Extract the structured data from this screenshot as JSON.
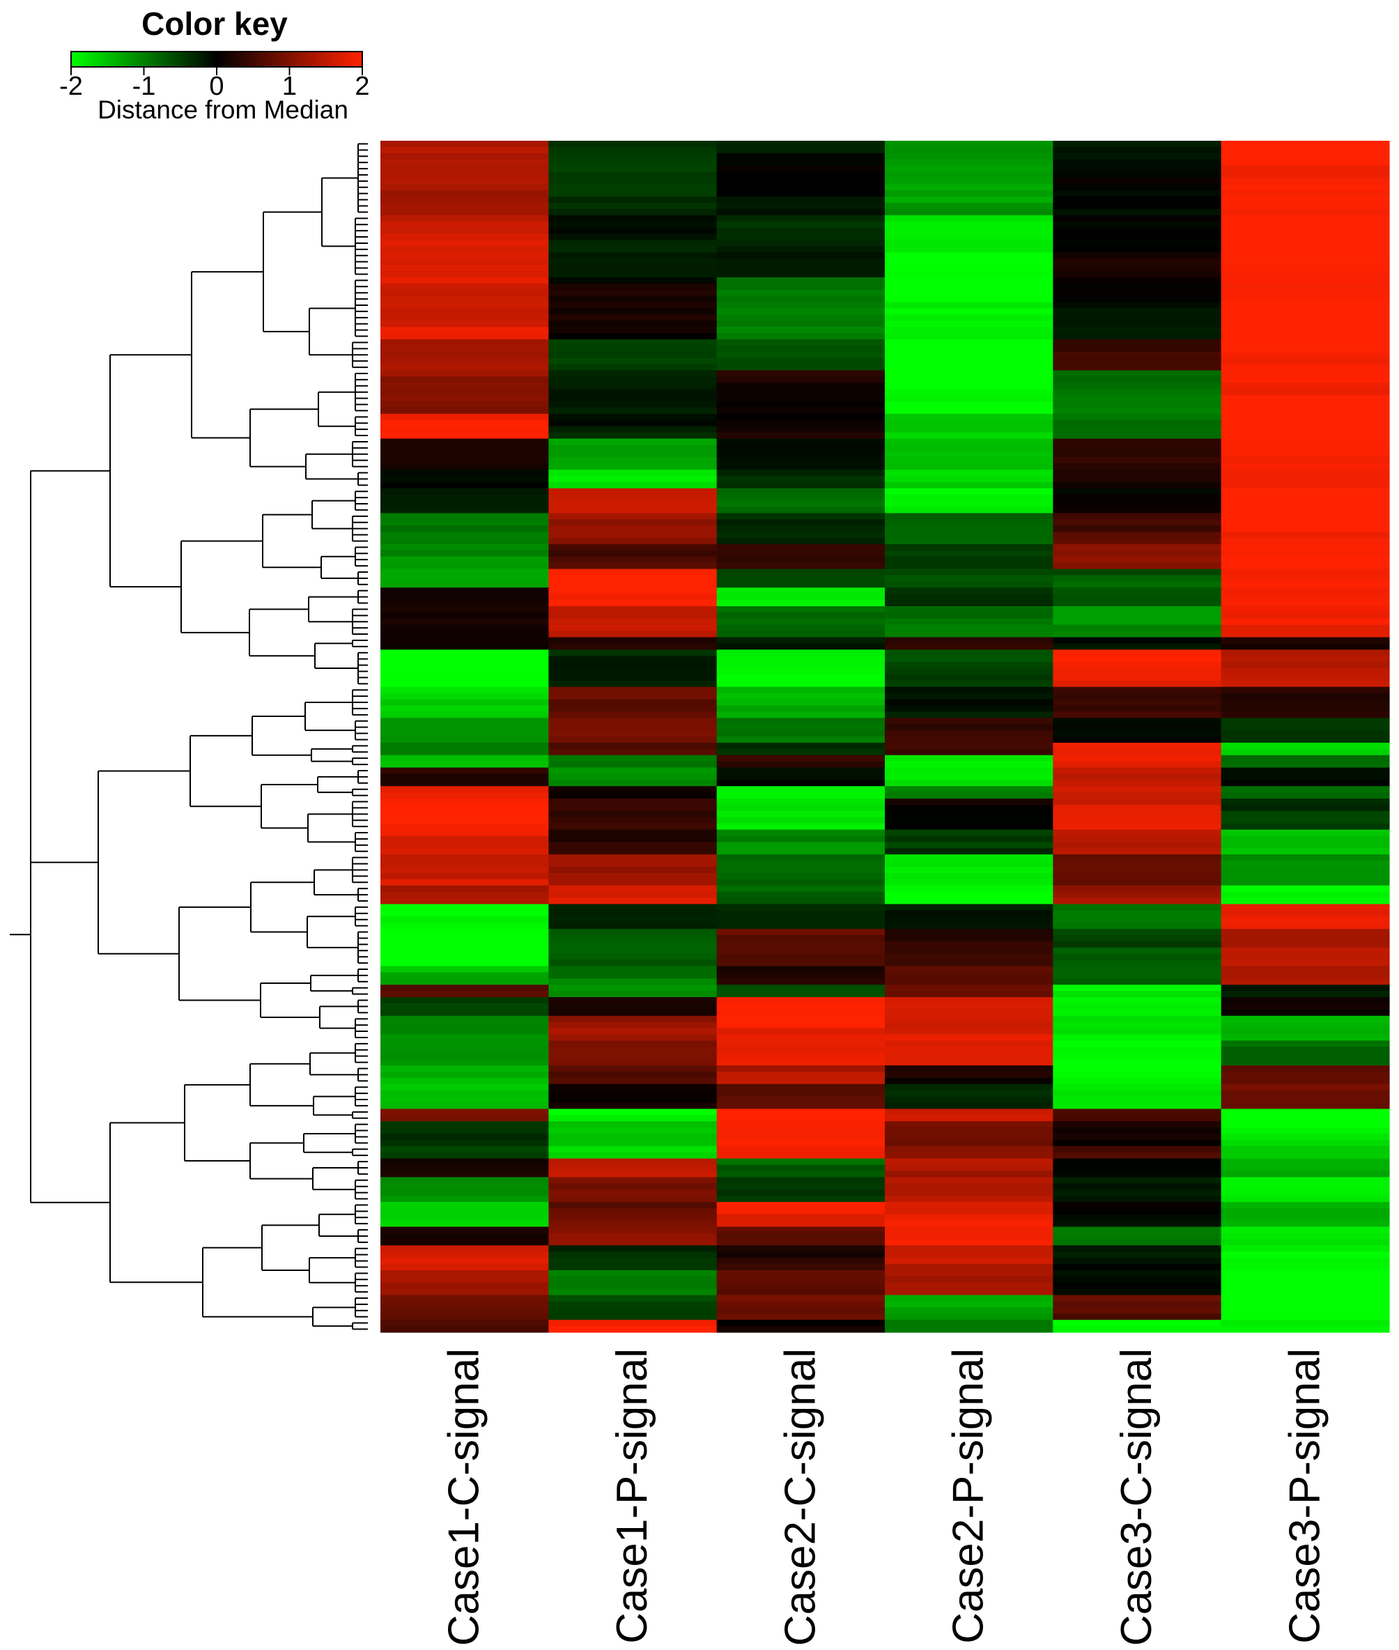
{
  "colors": {
    "low": "#00ff00",
    "mid": "#000000",
    "high": "#ff2200"
  },
  "chart_data": {
    "type": "heatmap",
    "color_key": {
      "title": "Color key",
      "label": "Distance from Median",
      "min": -2,
      "max": 2,
      "ticks": [
        "-2",
        "-1",
        "0",
        "1",
        "2"
      ]
    },
    "columns": [
      "Case1-C-signal",
      "Case1-P-signal",
      "Case2-C-signal",
      "Case2-P-signal",
      "Case3-C-signal",
      "Case3-P-signal"
    ],
    "dendrogram": "rows",
    "row_blocks": [
      {
        "rows": 12,
        "values": [
          1.3,
          -0.4,
          -0.1,
          -1.2,
          -0.1,
          2.0
        ]
      },
      {
        "rows": 10,
        "values": [
          1.6,
          -0.2,
          -0.3,
          -1.9,
          0.1,
          2.0
        ]
      },
      {
        "rows": 10,
        "values": [
          1.7,
          0.1,
          -0.9,
          -2.0,
          -0.1,
          2.0
        ]
      },
      {
        "rows": 5,
        "values": [
          1.2,
          -0.4,
          -0.7,
          -2.0,
          0.4,
          2.0
        ]
      },
      {
        "rows": 7,
        "values": [
          1.1,
          -0.3,
          0.2,
          -2.0,
          -0.9,
          2.0
        ]
      },
      {
        "rows": 4,
        "values": [
          1.9,
          -0.2,
          0.1,
          -1.6,
          -0.8,
          2.0
        ]
      },
      {
        "rows": 5,
        "values": [
          0.2,
          -1.2,
          -0.2,
          -1.4,
          0.3,
          2.0
        ]
      },
      {
        "rows": 3,
        "values": [
          0.0,
          -1.9,
          -0.3,
          -1.7,
          0.2,
          2.0
        ]
      },
      {
        "rows": 4,
        "values": [
          -0.1,
          1.5,
          -0.8,
          -2.0,
          0.1,
          2.0
        ]
      },
      {
        "rows": 5,
        "values": [
          -1.0,
          1.2,
          -0.4,
          -0.8,
          0.6,
          2.0
        ]
      },
      {
        "rows": 4,
        "values": [
          -1.1,
          0.6,
          0.3,
          -0.4,
          1.0,
          2.0
        ]
      },
      {
        "rows": 3,
        "values": [
          -1.2,
          1.9,
          -0.5,
          -0.7,
          -0.7,
          2.0
        ]
      },
      {
        "rows": 3,
        "values": [
          0.3,
          1.9,
          -1.8,
          -0.5,
          -0.6,
          1.9
        ]
      },
      {
        "rows": 5,
        "values": [
          0.1,
          1.6,
          -0.9,
          -0.9,
          -1.1,
          1.8
        ]
      },
      {
        "rows": 2,
        "values": [
          0.0,
          0.4,
          -0.3,
          0.5,
          -0.2,
          0.3
        ]
      },
      {
        "rows": 6,
        "values": [
          -1.9,
          -0.3,
          -1.9,
          -0.6,
          1.9,
          1.5
        ]
      },
      {
        "rows": 5,
        "values": [
          -1.7,
          0.8,
          -1.4,
          -0.2,
          0.5,
          0.2
        ]
      },
      {
        "rows": 4,
        "values": [
          -1.3,
          1.0,
          -1.0,
          0.5,
          -0.1,
          -0.3
        ]
      },
      {
        "rows": 2,
        "values": [
          -0.8,
          0.6,
          -0.4,
          0.6,
          1.8,
          -1.6
        ]
      },
      {
        "rows": 2,
        "values": [
          -1.4,
          -1.0,
          0.5,
          -1.9,
          1.8,
          -0.8
        ]
      },
      {
        "rows": 3,
        "values": [
          0.4,
          -1.2,
          0.0,
          -1.9,
          1.6,
          -0.2
        ]
      },
      {
        "rows": 2,
        "values": [
          1.7,
          0.1,
          -1.9,
          -1.1,
          1.7,
          -0.9
        ]
      },
      {
        "rows": 5,
        "values": [
          1.9,
          0.5,
          -1.9,
          0.1,
          1.7,
          -0.4
        ]
      },
      {
        "rows": 4,
        "values": [
          1.8,
          0.3,
          -1.1,
          -0.4,
          1.3,
          -1.4
        ]
      },
      {
        "rows": 5,
        "values": [
          1.6,
          1.1,
          -0.7,
          -1.9,
          0.9,
          -1.2
        ]
      },
      {
        "rows": 3,
        "values": [
          1.2,
          1.8,
          -0.8,
          -2.0,
          1.2,
          -2.0
        ]
      },
      {
        "rows": 4,
        "values": [
          -2.0,
          -0.2,
          -0.4,
          -0.1,
          -1.0,
          1.9
        ]
      },
      {
        "rows": 6,
        "values": [
          -2.0,
          -0.8,
          0.8,
          0.3,
          -0.6,
          1.4
        ]
      },
      {
        "rows": 3,
        "values": [
          -1.4,
          -0.9,
          0.3,
          0.6,
          -0.7,
          1.3
        ]
      },
      {
        "rows": 2,
        "values": [
          0.6,
          -1.0,
          -0.7,
          0.9,
          -1.9,
          -0.3
        ]
      },
      {
        "rows": 3,
        "values": [
          -0.6,
          0.3,
          1.9,
          1.7,
          -2.0,
          0.2
        ]
      },
      {
        "rows": 4,
        "values": [
          -1.0,
          1.2,
          1.9,
          1.7,
          -1.8,
          -1.3
        ]
      },
      {
        "rows": 4,
        "values": [
          -1.1,
          0.9,
          1.9,
          1.6,
          -1.9,
          -0.9
        ]
      },
      {
        "rows": 3,
        "values": [
          -1.5,
          0.7,
          1.4,
          0.1,
          -1.9,
          0.6
        ]
      },
      {
        "rows": 4,
        "values": [
          -1.6,
          0.2,
          0.6,
          -0.2,
          -1.9,
          0.9
        ]
      },
      {
        "rows": 2,
        "values": [
          1.0,
          -1.9,
          2.0,
          1.7,
          0.5,
          -2.0
        ]
      },
      {
        "rows": 4,
        "values": [
          -0.3,
          -1.6,
          2.0,
          0.8,
          0.2,
          -1.9
        ]
      },
      {
        "rows": 2,
        "values": [
          -0.4,
          -1.8,
          2.0,
          1.0,
          0.7,
          -1.7
        ]
      },
      {
        "rows": 3,
        "values": [
          0.1,
          1.6,
          -0.8,
          1.3,
          0.0,
          -1.4
        ]
      },
      {
        "rows": 4,
        "values": [
          -1.2,
          1.0,
          -0.5,
          1.5,
          -0.3,
          -1.8
        ]
      },
      {
        "rows": 4,
        "values": [
          -1.6,
          0.8,
          1.8,
          1.8,
          -0.1,
          -1.3
        ]
      },
      {
        "rows": 3,
        "values": [
          0.3,
          1.0,
          0.8,
          1.8,
          -0.9,
          -1.9
        ]
      },
      {
        "rows": 4,
        "values": [
          1.6,
          -0.3,
          0.3,
          1.5,
          -0.1,
          -2.0
        ]
      },
      {
        "rows": 4,
        "values": [
          1.2,
          -0.9,
          0.6,
          1.4,
          -0.2,
          -2.0
        ]
      },
      {
        "rows": 4,
        "values": [
          0.9,
          -0.6,
          0.9,
          -1.3,
          0.7,
          -2.0
        ]
      },
      {
        "rows": 2,
        "values": [
          0.7,
          1.9,
          0.2,
          -1.1,
          -1.9,
          -2.0
        ]
      }
    ]
  }
}
